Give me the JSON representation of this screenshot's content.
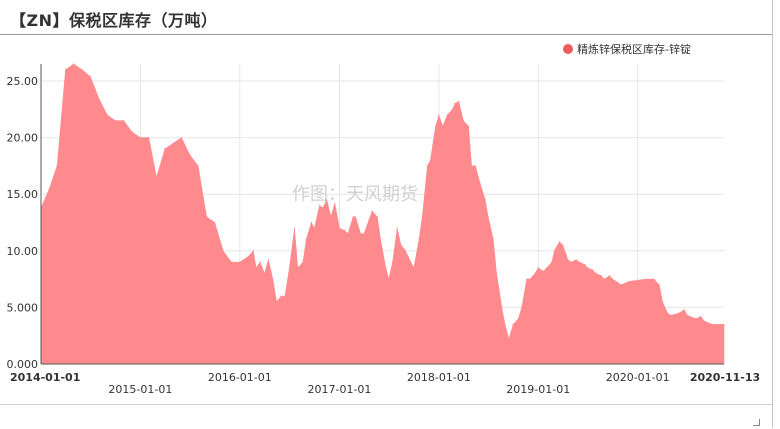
{
  "header": {
    "title": "【ZN】保税区库存（万吨）"
  },
  "watermark": "作图：天风期货",
  "colors": {
    "area": "#ff8a8d",
    "legend_dot": "#f15c60",
    "grid": "#e6e6e6",
    "axis_text": "#333333"
  },
  "chart_data": {
    "type": "area",
    "title": "【ZN】保税区库存（万吨）",
    "ylim": [
      0,
      26.5
    ],
    "y_ticks": [
      "0.000",
      "5.000",
      "10.00",
      "15.00",
      "20.00",
      "25.00"
    ],
    "y_tick_values": [
      0,
      5,
      10,
      15,
      20,
      25
    ],
    "x_range": [
      "2014-01-01",
      "2020-11-13"
    ],
    "x_ticks": [
      {
        "label": "2014-01-01",
        "date": "2014-01-01",
        "row": 1,
        "bold": true
      },
      {
        "label": "2015-01-01",
        "date": "2015-01-01",
        "row": 2,
        "bold": false
      },
      {
        "label": "2016-01-01",
        "date": "2016-01-01",
        "row": 1,
        "bold": false
      },
      {
        "label": "2017-01-01",
        "date": "2017-01-01",
        "row": 2,
        "bold": false
      },
      {
        "label": "2018-01-01",
        "date": "2018-01-01",
        "row": 1,
        "bold": false
      },
      {
        "label": "2019-01-01",
        "date": "2019-01-01",
        "row": 2,
        "bold": false
      },
      {
        "label": "2020-01-01",
        "date": "2020-01-01",
        "row": 1,
        "bold": false
      },
      {
        "label": "2020-11-13",
        "date": "2020-11-13",
        "row": 1,
        "bold": true
      }
    ],
    "grid": true,
    "legend_position": "top-right",
    "series": [
      {
        "name": "精炼锌保税区库存-锌锭",
        "points": [
          [
            "2014-01-01",
            13.8
          ],
          [
            "2014-02-01",
            15.5
          ],
          [
            "2014-03-01",
            17.5
          ],
          [
            "2014-04-01",
            26.0
          ],
          [
            "2014-05-01",
            26.5
          ],
          [
            "2014-06-01",
            26.0
          ],
          [
            "2014-07-01",
            25.4
          ],
          [
            "2014-08-01",
            23.5
          ],
          [
            "2014-09-01",
            22.0
          ],
          [
            "2014-10-01",
            21.5
          ],
          [
            "2014-11-01",
            21.5
          ],
          [
            "2014-12-01",
            20.5
          ],
          [
            "2015-01-01",
            20.0
          ],
          [
            "2015-02-01",
            20.0
          ],
          [
            "2015-03-01",
            16.5
          ],
          [
            "2015-04-01",
            19.0
          ],
          [
            "2015-05-01",
            19.5
          ],
          [
            "2015-06-01",
            20.0
          ],
          [
            "2015-07-01",
            18.5
          ],
          [
            "2015-08-01",
            17.5
          ],
          [
            "2015-09-01",
            13.0
          ],
          [
            "2015-10-01",
            12.5
          ],
          [
            "2015-11-01",
            10.0
          ],
          [
            "2015-12-01",
            9.0
          ],
          [
            "2016-01-01",
            9.0
          ],
          [
            "2016-02-01",
            9.5
          ],
          [
            "2016-02-20",
            10.0
          ],
          [
            "2016-03-01",
            8.5
          ],
          [
            "2016-03-15",
            9.0
          ],
          [
            "2016-04-01",
            8.0
          ],
          [
            "2016-04-15",
            9.2
          ],
          [
            "2016-05-01",
            7.5
          ],
          [
            "2016-05-15",
            5.5
          ],
          [
            "2016-06-01",
            6.0
          ],
          [
            "2016-06-15",
            6.0
          ],
          [
            "2016-07-01",
            8.5
          ],
          [
            "2016-07-20",
            12.0
          ],
          [
            "2016-08-01",
            8.5
          ],
          [
            "2016-08-20",
            9.0
          ],
          [
            "2016-09-01",
            11.0
          ],
          [
            "2016-09-20",
            12.5
          ],
          [
            "2016-10-01",
            12.0
          ],
          [
            "2016-10-20",
            14.0
          ],
          [
            "2016-11-01",
            13.8
          ],
          [
            "2016-11-15",
            14.5
          ],
          [
            "2016-12-01",
            13.0
          ],
          [
            "2016-12-15",
            14.2
          ],
          [
            "2017-01-01",
            12.0
          ],
          [
            "2017-01-20",
            11.8
          ],
          [
            "2017-02-01",
            11.5
          ],
          [
            "2017-02-20",
            13.0
          ],
          [
            "2017-03-01",
            13.0
          ],
          [
            "2017-03-20",
            11.5
          ],
          [
            "2017-04-01",
            11.5
          ],
          [
            "2017-04-20",
            12.8
          ],
          [
            "2017-05-01",
            13.5
          ],
          [
            "2017-05-20",
            13.0
          ],
          [
            "2017-06-01",
            11.0
          ],
          [
            "2017-06-20",
            8.5
          ],
          [
            "2017-07-01",
            7.5
          ],
          [
            "2017-07-15",
            9.0
          ],
          [
            "2017-08-01",
            12.0
          ],
          [
            "2017-08-15",
            10.5
          ],
          [
            "2017-09-01",
            10.0
          ],
          [
            "2017-09-20",
            9.0
          ],
          [
            "2017-10-01",
            8.5
          ],
          [
            "2017-10-20",
            11.0
          ],
          [
            "2017-11-01",
            13.0
          ],
          [
            "2017-11-20",
            17.5
          ],
          [
            "2017-12-01",
            18.0
          ],
          [
            "2017-12-20",
            21.0
          ],
          [
            "2018-01-01",
            22.0
          ],
          [
            "2018-01-15",
            21.0
          ],
          [
            "2018-02-01",
            22.0
          ],
          [
            "2018-02-20",
            22.5
          ],
          [
            "2018-03-01",
            23.0
          ],
          [
            "2018-03-15",
            23.2
          ],
          [
            "2018-04-01",
            21.5
          ],
          [
            "2018-04-20",
            21.0
          ],
          [
            "2018-05-01",
            17.5
          ],
          [
            "2018-05-15",
            17.5
          ],
          [
            "2018-06-01",
            16.0
          ],
          [
            "2018-06-20",
            14.5
          ],
          [
            "2018-07-01",
            13.0
          ],
          [
            "2018-07-20",
            11.0
          ],
          [
            "2018-08-01",
            8.0
          ],
          [
            "2018-08-20",
            5.0
          ],
          [
            "2018-09-01",
            3.5
          ],
          [
            "2018-09-15",
            2.2
          ],
          [
            "2018-10-01",
            3.5
          ],
          [
            "2018-10-20",
            4.0
          ],
          [
            "2018-11-01",
            5.0
          ],
          [
            "2018-11-20",
            7.5
          ],
          [
            "2018-12-01",
            7.5
          ],
          [
            "2018-12-20",
            8.0
          ],
          [
            "2019-01-01",
            8.5
          ],
          [
            "2019-01-20",
            8.2
          ],
          [
            "2019-02-01",
            8.5
          ],
          [
            "2019-02-20",
            9.0
          ],
          [
            "2019-03-01",
            10.0
          ],
          [
            "2019-03-20",
            10.8
          ],
          [
            "2019-04-01",
            10.5
          ],
          [
            "2019-04-20",
            9.2
          ],
          [
            "2019-05-01",
            9.0
          ],
          [
            "2019-05-20",
            9.2
          ],
          [
            "2019-06-01",
            9.0
          ],
          [
            "2019-06-20",
            8.8
          ],
          [
            "2019-07-01",
            8.5
          ],
          [
            "2019-07-20",
            8.3
          ],
          [
            "2019-08-01",
            8.0
          ],
          [
            "2019-08-20",
            7.8
          ],
          [
            "2019-09-01",
            7.5
          ],
          [
            "2019-09-20",
            7.8
          ],
          [
            "2019-10-01",
            7.5
          ],
          [
            "2019-10-20",
            7.2
          ],
          [
            "2019-11-01",
            7.0
          ],
          [
            "2019-12-01",
            7.3
          ],
          [
            "2020-01-01",
            7.4
          ],
          [
            "2020-02-01",
            7.5
          ],
          [
            "2020-03-01",
            7.5
          ],
          [
            "2020-03-20",
            7.0
          ],
          [
            "2020-04-01",
            5.5
          ],
          [
            "2020-04-20",
            4.5
          ],
          [
            "2020-05-01",
            4.3
          ],
          [
            "2020-06-01",
            4.5
          ],
          [
            "2020-06-20",
            4.8
          ],
          [
            "2020-07-01",
            4.3
          ],
          [
            "2020-08-01",
            4.0
          ],
          [
            "2020-08-20",
            4.2
          ],
          [
            "2020-09-01",
            3.8
          ],
          [
            "2020-10-01",
            3.5
          ],
          [
            "2020-11-13",
            3.5
          ]
        ]
      }
    ]
  }
}
